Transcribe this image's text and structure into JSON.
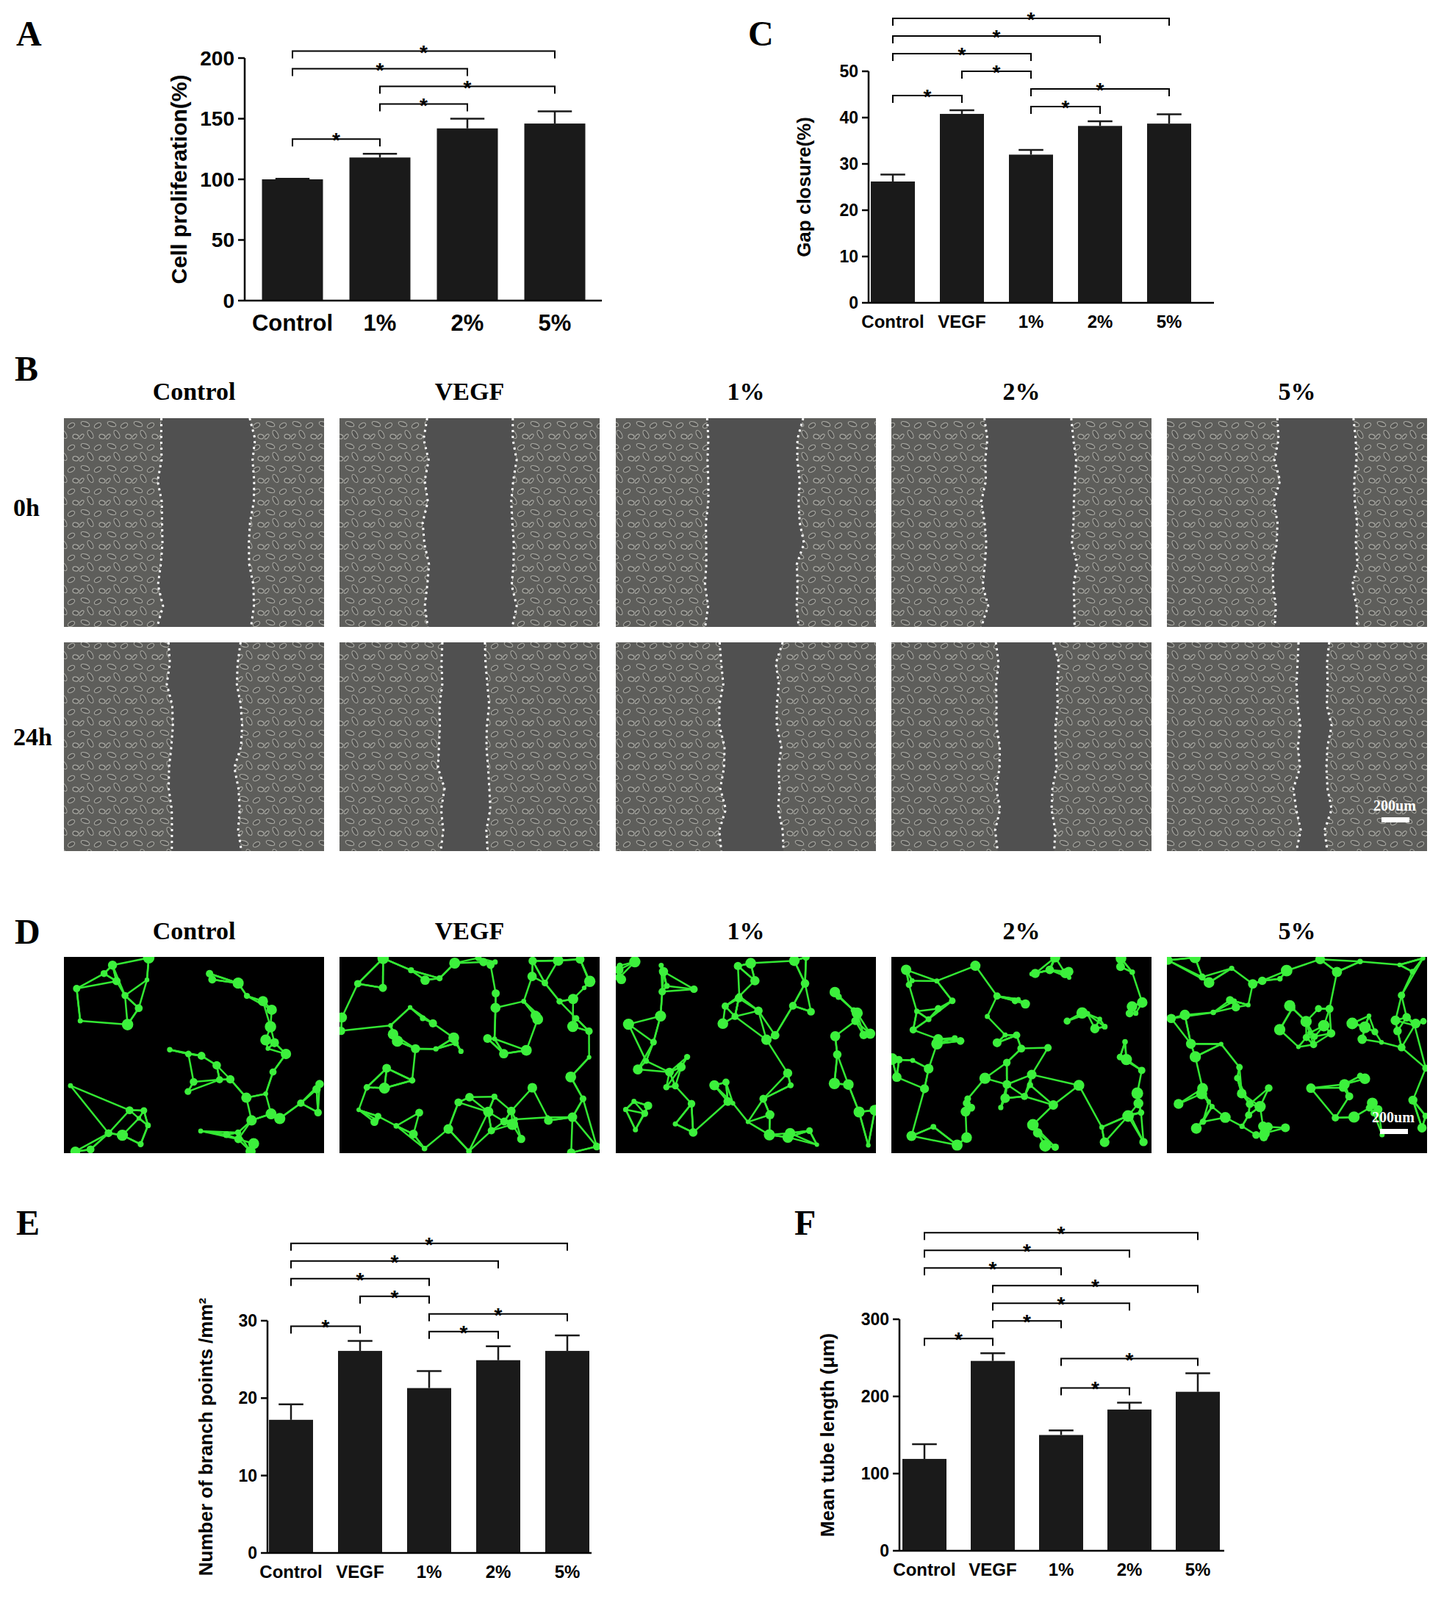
{
  "chart_data": [
    {
      "type": "bar",
      "title": "A",
      "y_label": "Cell proliferation(%)",
      "color": "#1a1a1a",
      "categories": [
        "Control",
        "1%",
        "2%",
        "5%"
      ],
      "values": [
        100,
        118,
        142,
        146
      ],
      "errors": [
        0.5,
        3,
        8,
        10
      ],
      "ylim": [
        0,
        200
      ],
      "yticks": [
        0,
        50,
        100,
        150,
        200
      ],
      "annotations": [
        {
          "from": "Control",
          "to": "1%",
          "text": "*"
        },
        {
          "from": "1%",
          "to": "2%",
          "text": "*"
        },
        {
          "from": "1%",
          "to": "5%",
          "text": "*"
        },
        {
          "from": "Control",
          "to": "2%",
          "text": "*"
        },
        {
          "from": "Control",
          "to": "5%",
          "text": "*"
        }
      ]
    },
    {
      "type": "bar",
      "title": "C",
      "y_label": "Gap closure(%)",
      "color": "#1a1a1a",
      "categories": [
        "Control",
        "VEGF",
        "1%",
        "2%",
        "5%"
      ],
      "values": [
        26.2,
        40.8,
        32,
        38.2,
        38.7
      ],
      "errors": [
        1.5,
        0.8,
        1,
        1,
        2
      ],
      "ylim": [
        0,
        50
      ],
      "yticks": [
        0,
        10,
        20,
        30,
        40,
        50
      ],
      "annotations": [
        {
          "from": "Control",
          "to": "VEGF",
          "text": "*"
        },
        {
          "from": "1%",
          "to": "2%",
          "text": "*"
        },
        {
          "from": "1%",
          "to": "5%",
          "text": "*"
        },
        {
          "from": "VEGF",
          "to": "1%",
          "text": "*"
        },
        {
          "from": "Control",
          "to": "1%",
          "text": "*"
        },
        {
          "from": "Control",
          "to": "2%",
          "text": "*"
        },
        {
          "from": "Control",
          "to": "5%",
          "text": "*"
        }
      ]
    },
    {
      "type": "bar",
      "title": "E",
      "y_label": "Number of branch points /mm²",
      "color": "#1a1a1a",
      "categories": [
        "Control",
        "VEGF",
        "1%",
        "2%",
        "5%"
      ],
      "values": [
        17.2,
        26.1,
        21.3,
        24.9,
        26.1
      ],
      "errors": [
        2,
        1.3,
        2.2,
        1.8,
        2
      ],
      "ylim": [
        0,
        30
      ],
      "yticks": [
        0,
        10,
        20,
        30
      ],
      "annotations": [
        {
          "from": "Control",
          "to": "VEGF",
          "text": "*"
        },
        {
          "from": "1%",
          "to": "2%",
          "text": "*"
        },
        {
          "from": "1%",
          "to": "5%",
          "text": "*"
        },
        {
          "from": "VEGF",
          "to": "1%",
          "text": "*"
        },
        {
          "from": "Control",
          "to": "1%",
          "text": "*"
        },
        {
          "from": "Control",
          "to": "2%",
          "text": "*"
        },
        {
          "from": "Control",
          "to": "5%",
          "text": "*"
        }
      ]
    },
    {
      "type": "bar",
      "title": "F",
      "y_label": "Mean tube length (μm)",
      "color": "#1a1a1a",
      "categories": [
        "Control",
        "VEGF",
        "1%",
        "2%",
        "5%"
      ],
      "values": [
        119,
        246,
        150,
        183,
        206
      ],
      "errors": [
        19,
        10,
        6,
        9,
        24
      ],
      "ylim": [
        0,
        300
      ],
      "yticks": [
        0,
        100,
        200,
        300
      ],
      "annotations": [
        {
          "from": "Control",
          "to": "VEGF",
          "text": "*"
        },
        {
          "from": "1%",
          "to": "2%",
          "text": "*"
        },
        {
          "from": "1%",
          "to": "5%",
          "text": "*"
        },
        {
          "from": "VEGF",
          "to": "1%",
          "text": "*"
        },
        {
          "from": "VEGF",
          "to": "2%",
          "text": "*"
        },
        {
          "from": "VEGF",
          "to": "5%",
          "text": "*"
        },
        {
          "from": "Control",
          "to": "1%",
          "text": "*"
        },
        {
          "from": "Control",
          "to": "2%",
          "text": "*"
        },
        {
          "from": "Control",
          "to": "5%",
          "text": "*"
        }
      ]
    }
  ],
  "image_panels": [
    {
      "title": "B",
      "columns": [
        "Control",
        "VEGF",
        "1%",
        "2%",
        "5%"
      ],
      "rows": [
        "0h",
        "24h"
      ],
      "scale_bar": "200um"
    },
    {
      "title": "D",
      "columns": [
        "Control",
        "VEGF",
        "1%",
        "2%",
        "5%"
      ],
      "scale_bar": "200um"
    }
  ]
}
